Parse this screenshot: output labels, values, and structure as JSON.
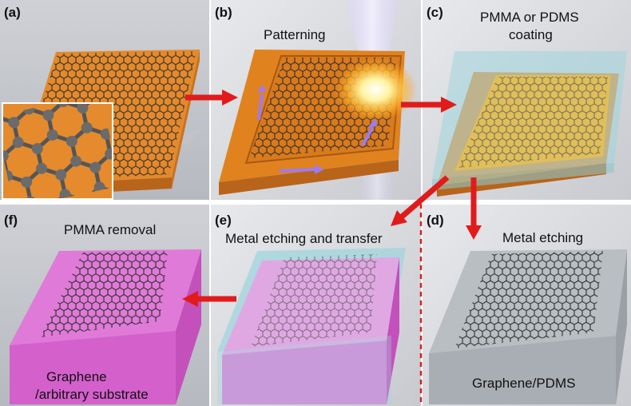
{
  "panels": {
    "a": {
      "label": "(a)"
    },
    "b": {
      "label": "(b)",
      "title": "Patterning"
    },
    "c": {
      "label": "(c)",
      "title_line1": "PMMA or PDMS",
      "title_line2": "coating"
    },
    "d": {
      "label": "(d)",
      "title": "Metal etching",
      "caption": "Graphene/PDMS"
    },
    "e": {
      "label": "(e)",
      "title": "Metal etching and transfer"
    },
    "f": {
      "label": "(f)",
      "title": "PMMA removal",
      "caption_line1": "Graphene",
      "caption_line2": "/arbitrary substrate"
    }
  },
  "colors": {
    "panel_bg": "#c4c6cc",
    "copper": "#e48a2c",
    "copper_dark": "#b8641a",
    "graphene": "#3a3a3a",
    "pmma": "#9fd6dc",
    "pink_substrate": "#e07ad8",
    "arrow": "#e11b1b",
    "dashed_line": "#d42020",
    "laser_glow": "#ffe060",
    "purple_arrow": "#9d7bf0"
  },
  "icons": {
    "inset": "graphene-atom-lattice-icon",
    "laser": "laser-beam-icon",
    "arrows": "red-flow-arrow-icon"
  }
}
